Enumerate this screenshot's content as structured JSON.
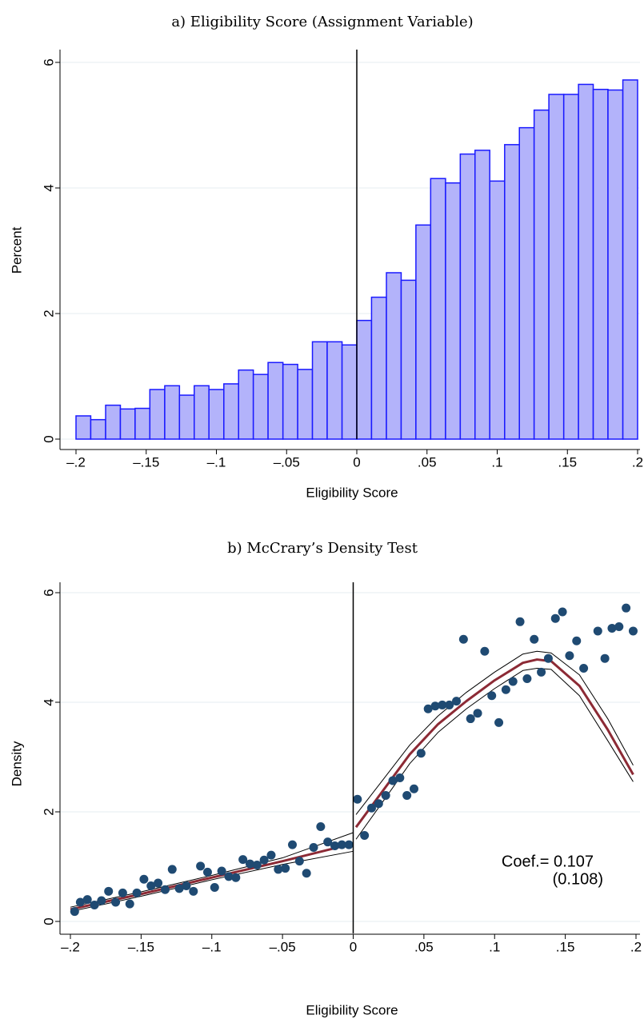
{
  "chart_data": [
    {
      "type": "histogram",
      "title": "a) Eligibility Score (Assignment Variable)",
      "xlabel": "Eligibility Score",
      "ylabel": "Percent",
      "bins": [
        -0.2,
        -0.1895,
        -0.1789,
        -0.1684,
        -0.1579,
        -0.1474,
        -0.1368,
        -0.1263,
        -0.1158,
        -0.1053,
        -0.0947,
        -0.0842,
        -0.0737,
        -0.0632,
        -0.0526,
        -0.0421,
        -0.0316,
        -0.0211,
        -0.0105,
        0,
        0.0105,
        0.0211,
        0.0316,
        0.0421,
        0.0526,
        0.0632,
        0.0737,
        0.0842,
        0.0947,
        0.1053,
        0.1158,
        0.1263,
        0.1368,
        0.1474,
        0.1579,
        0.1684,
        0.1789,
        0.1895,
        0.2
      ],
      "values": [
        0.37,
        0.31,
        0.54,
        0.48,
        0.49,
        0.79,
        0.85,
        0.7,
        0.85,
        0.79,
        0.88,
        1.1,
        1.03,
        1.22,
        1.19,
        1.11,
        1.55,
        1.55,
        1.5,
        1.89,
        2.26,
        2.65,
        2.53,
        3.41,
        4.15,
        4.08,
        4.54,
        4.6,
        4.11,
        4.69,
        4.96,
        5.24,
        5.49,
        5.49,
        5.65,
        5.57,
        5.56,
        5.72
      ],
      "color": "#b3b3fa",
      "edgecolor": "#1a1aff",
      "xline": 0,
      "xlim": [
        -0.2,
        0.2
      ],
      "ylim": [
        0,
        6
      ],
      "xticks": [
        {
          "value": -0.2,
          "label": "–.2"
        },
        {
          "value": -0.15,
          "label": "–.15"
        },
        {
          "value": -0.1,
          "label": "–.1"
        },
        {
          "value": -0.05,
          "label": "–.05"
        },
        0,
        {
          "value": 0.05,
          "label": ".05"
        },
        {
          "value": 0.1,
          "label": ".1"
        },
        {
          "value": 0.15,
          "label": ".15"
        },
        {
          "value": 0.2,
          "label": ".2"
        }
      ],
      "yticks": [
        0,
        2,
        4,
        6
      ],
      "grid": true
    },
    {
      "type": "scatter",
      "title": "b) McCrary’s Density Test",
      "xlabel": "Eligibility Score",
      "ylabel": "Density",
      "x": [
        -0.197,
        -0.193,
        -0.188,
        -0.183,
        -0.178,
        -0.173,
        -0.168,
        -0.163,
        -0.158,
        -0.153,
        -0.148,
        -0.143,
        -0.138,
        -0.133,
        -0.128,
        -0.123,
        -0.118,
        -0.113,
        -0.108,
        -0.103,
        -0.098,
        -0.093,
        -0.088,
        -0.083,
        -0.078,
        -0.073,
        -0.068,
        -0.063,
        -0.058,
        -0.053,
        -0.048,
        -0.043,
        -0.038,
        -0.033,
        -0.028,
        -0.023,
        -0.018,
        -0.013,
        -0.008,
        -0.003,
        0.003,
        0.008,
        0.013,
        0.018,
        0.023,
        0.028,
        0.033,
        0.038,
        0.043,
        0.048,
        0.053,
        0.058,
        0.063,
        0.068,
        0.073,
        0.078,
        0.083,
        0.088,
        0.093,
        0.098,
        0.103,
        0.108,
        0.113,
        0.118,
        0.123,
        0.128,
        0.133,
        0.138,
        0.143,
        0.148,
        0.153,
        0.158,
        0.163,
        0.173,
        0.178,
        0.183,
        0.188,
        0.193,
        0.198
      ],
      "values": [
        0.18,
        0.35,
        0.4,
        0.3,
        0.38,
        0.55,
        0.35,
        0.52,
        0.32,
        0.52,
        0.77,
        0.65,
        0.7,
        0.58,
        0.95,
        0.6,
        0.65,
        0.55,
        1.01,
        0.9,
        0.62,
        0.92,
        0.82,
        0.8,
        1.13,
        1.05,
        1.03,
        1.12,
        1.21,
        0.95,
        0.97,
        1.4,
        1.1,
        0.88,
        1.35,
        1.73,
        1.45,
        1.38,
        1.4,
        1.4,
        2.23,
        1.57,
        2.07,
        2.15,
        2.3,
        2.57,
        2.62,
        2.3,
        2.42,
        3.07,
        3.88,
        3.93,
        3.95,
        3.95,
        4.02,
        5.15,
        3.7,
        3.8,
        4.93,
        4.12,
        3.63,
        4.23,
        4.38,
        5.47,
        4.43,
        5.15,
        4.55,
        4.8,
        5.53,
        5.65,
        4.85,
        5.12,
        4.62,
        5.3,
        4.8,
        5.35,
        5.38,
        5.72,
        5.3
      ],
      "color": "#1f4a72",
      "fit_lines": [
        {
          "color": "#8c2a35",
          "x": [
            -0.2,
            -0.15,
            -0.1,
            -0.05,
            0
          ],
          "values": [
            0.22,
            0.5,
            0.8,
            1.1,
            1.42
          ]
        },
        {
          "color": "#8c2a35",
          "x": [
            0.002,
            0.02,
            0.04,
            0.06,
            0.08,
            0.1,
            0.12,
            0.13,
            0.14,
            0.16,
            0.18,
            0.198
          ],
          "values": [
            1.72,
            2.35,
            3.05,
            3.6,
            4.02,
            4.4,
            4.72,
            4.78,
            4.75,
            4.3,
            3.5,
            2.68
          ]
        }
      ],
      "ci_lines": [
        {
          "color": "#000000",
          "x": [
            -0.2,
            -0.15,
            -0.1,
            -0.05,
            0
          ],
          "values": [
            0.18,
            0.46,
            0.76,
            1.04,
            1.28
          ]
        },
        {
          "color": "#000000",
          "x": [
            -0.2,
            -0.15,
            -0.1,
            -0.05,
            0
          ],
          "values": [
            0.26,
            0.54,
            0.84,
            1.16,
            1.62
          ]
        },
        {
          "color": "#000000",
          "x": [
            0.002,
            0.02,
            0.04,
            0.06,
            0.08,
            0.1,
            0.12,
            0.13,
            0.14,
            0.16,
            0.18,
            0.198
          ],
          "values": [
            1.5,
            2.15,
            2.88,
            3.45,
            3.88,
            4.25,
            4.58,
            4.62,
            4.6,
            4.12,
            3.3,
            2.55
          ]
        },
        {
          "color": "#000000",
          "x": [
            0.002,
            0.02,
            0.04,
            0.06,
            0.08,
            0.1,
            0.12,
            0.13,
            0.14,
            0.16,
            0.18,
            0.198
          ],
          "values": [
            1.95,
            2.55,
            3.22,
            3.75,
            4.18,
            4.55,
            4.88,
            4.93,
            4.9,
            4.5,
            3.7,
            2.85
          ]
        }
      ],
      "annotations": [
        "Coef.= 0.107",
        "(0.108)"
      ],
      "xline": 0,
      "xlim": [
        -0.2,
        0.2
      ],
      "ylim": [
        0,
        6
      ],
      "xticks": [
        {
          "value": -0.2,
          "label": "–.2"
        },
        {
          "value": -0.15,
          "label": "–.15"
        },
        {
          "value": -0.1,
          "label": "–.1"
        },
        {
          "value": -0.05,
          "label": "–.05"
        },
        0,
        {
          "value": 0.05,
          "label": ".05"
        },
        {
          "value": 0.1,
          "label": ".1"
        },
        {
          "value": 0.15,
          "label": ".15"
        },
        {
          "value": 0.2,
          "label": ".2"
        }
      ],
      "yticks": [
        0,
        2,
        4,
        6
      ],
      "grid": true
    }
  ]
}
